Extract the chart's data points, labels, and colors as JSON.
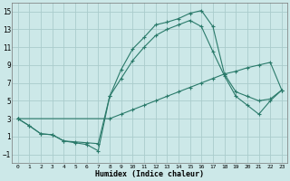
{
  "xlabel": "Humidex (Indice chaleur)",
  "background_color": "#cce8e8",
  "grid_color": "#aacccc",
  "line_color": "#2a7a6a",
  "xlim": [
    -0.5,
    23.5
  ],
  "ylim": [
    -2,
    16
  ],
  "xticks": [
    0,
    1,
    2,
    3,
    4,
    5,
    6,
    7,
    8,
    9,
    10,
    11,
    12,
    13,
    14,
    15,
    16,
    17,
    18,
    19,
    20,
    21,
    22,
    23
  ],
  "yticks": [
    -1,
    1,
    3,
    5,
    7,
    9,
    11,
    13,
    15
  ],
  "line1_x": [
    0,
    1,
    2,
    3,
    4,
    5,
    6,
    7,
    8,
    9,
    10,
    11,
    12,
    13,
    14,
    15,
    16,
    17,
    18,
    19,
    20,
    21,
    22,
    23
  ],
  "line1_y": [
    3.0,
    2.2,
    1.3,
    1.2,
    0.5,
    0.3,
    0.1,
    -0.6,
    5.5,
    8.5,
    10.8,
    12.1,
    13.5,
    13.8,
    14.2,
    14.8,
    15.1,
    13.3,
    8.0,
    6.0,
    5.5,
    5.0,
    5.2,
    6.2
  ],
  "line2_x": [
    0,
    1,
    2,
    3,
    4,
    5,
    6,
    7,
    8,
    9,
    10,
    11,
    12,
    13,
    14,
    15,
    16,
    17,
    18,
    19,
    20,
    21,
    22,
    23
  ],
  "line2_y": [
    3.0,
    2.2,
    1.3,
    1.2,
    0.5,
    0.4,
    0.3,
    0.2,
    5.5,
    7.5,
    9.5,
    11.0,
    12.3,
    13.0,
    13.5,
    14.0,
    13.3,
    10.5,
    7.8,
    5.5,
    4.5,
    3.5,
    5.0,
    6.2
  ],
  "line3_x": [
    0,
    8,
    9,
    10,
    11,
    12,
    13,
    14,
    15,
    16,
    17,
    18,
    19,
    20,
    21,
    22,
    23
  ],
  "line3_y": [
    3.0,
    3.0,
    3.5,
    4.0,
    4.5,
    5.0,
    5.5,
    6.0,
    6.5,
    7.0,
    7.5,
    8.0,
    8.3,
    8.7,
    9.0,
    9.3,
    6.2
  ]
}
